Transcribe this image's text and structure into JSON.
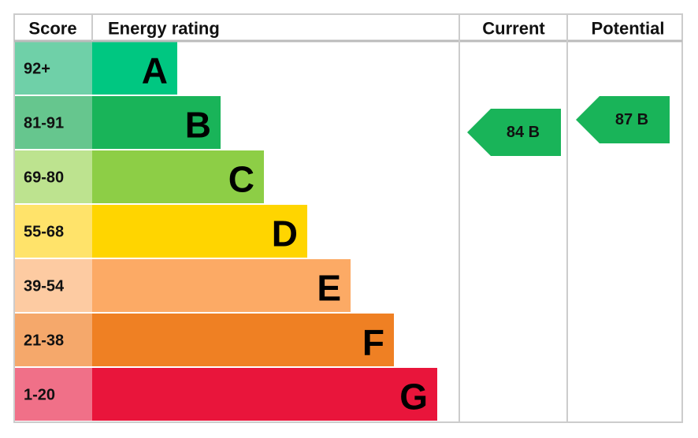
{
  "header": {
    "score": "Score",
    "energy_rating": "Energy rating",
    "current": "Current",
    "potential": "Potential"
  },
  "rows": [
    {
      "score": "92+",
      "letter": "A",
      "color": "#00c781",
      "score_color": "#6fd0a8"
    },
    {
      "score": "81-91",
      "letter": "B",
      "color": "#19b459",
      "score_color": "#66c68e"
    },
    {
      "score": "69-80",
      "letter": "C",
      "color": "#8dce46",
      "score_color": "#bde38f"
    },
    {
      "score": "55-68",
      "letter": "D",
      "color": "#ffd500",
      "score_color": "#ffe36a"
    },
    {
      "score": "39-54",
      "letter": "E",
      "color": "#fcaa65",
      "score_color": "#fdcba2"
    },
    {
      "score": "21-38",
      "letter": "F",
      "color": "#ef8023",
      "score_color": "#f5a86b"
    },
    {
      "score": "1-20",
      "letter": "G",
      "color": "#e9153b",
      "score_color": "#f07088"
    }
  ],
  "current": {
    "label": "84 B",
    "color": "#19b459"
  },
  "potential": {
    "label": "87 B",
    "color": "#19b459"
  }
}
